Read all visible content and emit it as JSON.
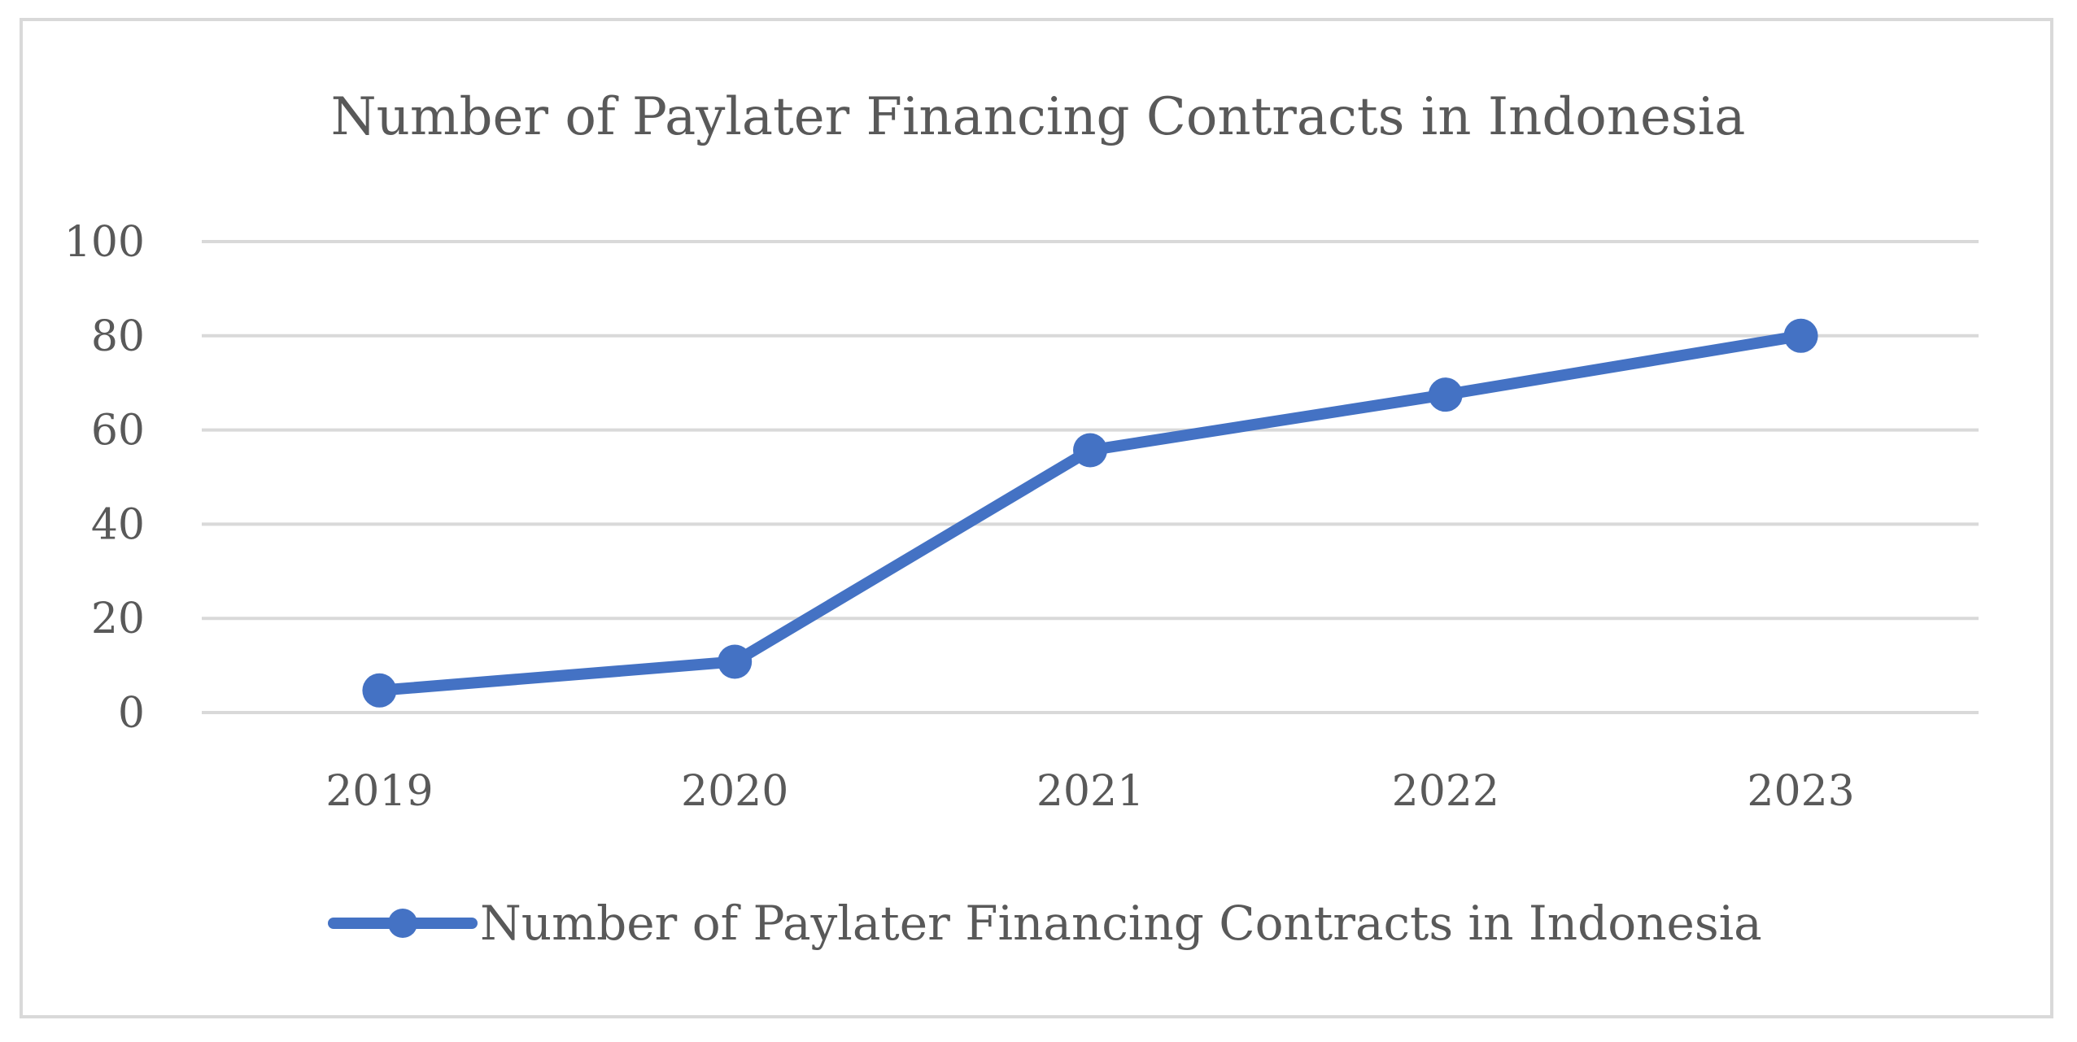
{
  "chart_data": {
    "type": "line",
    "title": "Number of Paylater Financing Contracts in Indonesia",
    "xlabel": "",
    "ylabel": "",
    "categories": [
      "2019",
      "2020",
      "2021",
      "2022",
      "2023"
    ],
    "series": [
      {
        "name": "Number of Paylater Financing Contracts in Indonesia",
        "values": [
          4.7,
          10.8,
          55.7,
          67.5,
          80.0
        ],
        "color": "#4472c4"
      }
    ],
    "ylim": [
      0,
      100
    ],
    "yticks": [
      0,
      20,
      40,
      60,
      80,
      100
    ],
    "grid": true,
    "legend_position": "bottom"
  }
}
